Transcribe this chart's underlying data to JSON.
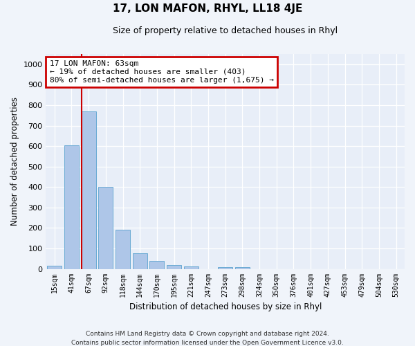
{
  "title": "17, LON MAFON, RHYL, LL18 4JE",
  "subtitle": "Size of property relative to detached houses in Rhyl",
  "xlabel": "Distribution of detached houses by size in Rhyl",
  "ylabel": "Number of detached properties",
  "bar_labels": [
    "15sqm",
    "41sqm",
    "67sqm",
    "92sqm",
    "118sqm",
    "144sqm",
    "170sqm",
    "195sqm",
    "221sqm",
    "247sqm",
    "273sqm",
    "298sqm",
    "324sqm",
    "350sqm",
    "376sqm",
    "401sqm",
    "427sqm",
    "453sqm",
    "479sqm",
    "504sqm",
    "530sqm"
  ],
  "bar_values": [
    15,
    605,
    770,
    400,
    190,
    75,
    38,
    18,
    12,
    0,
    10,
    8,
    0,
    0,
    0,
    0,
    0,
    0,
    0,
    0,
    0
  ],
  "bar_color": "#aec6e8",
  "bar_edgecolor": "#6aaad4",
  "vline_color": "#cc0000",
  "annotation_text": "17 LON MAFON: 63sqm\n← 19% of detached houses are smaller (403)\n80% of semi-detached houses are larger (1,675) →",
  "annotation_box_color": "#cc0000",
  "annotation_bg": "#ffffff",
  "ylim": [
    0,
    1050
  ],
  "yticks": [
    0,
    100,
    200,
    300,
    400,
    500,
    600,
    700,
    800,
    900,
    1000
  ],
  "footer": "Contains HM Land Registry data © Crown copyright and database right 2024.\nContains public sector information licensed under the Open Government Licence v3.0.",
  "fig_bg": "#f0f4fa",
  "plot_bg": "#e8eef8"
}
